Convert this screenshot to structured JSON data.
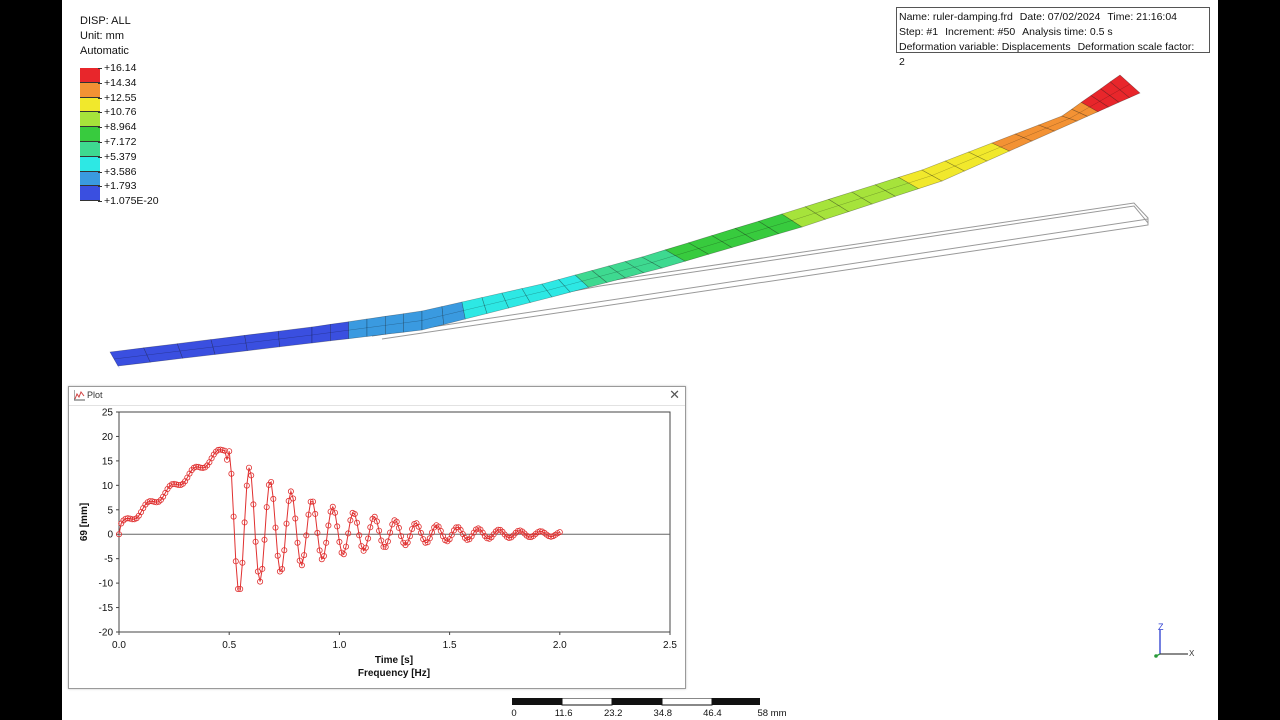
{
  "legend": {
    "variable": "DISP: ALL",
    "unit": "Unit: mm",
    "mode": "Automatic",
    "colors": [
      "#e8262b",
      "#f39234",
      "#f1e82c",
      "#a6e33b",
      "#38cb3e",
      "#3ed990",
      "#2de8e4",
      "#3a9ae0",
      "#3a4fe0"
    ],
    "labels": [
      "+16.14",
      "+14.34",
      "+12.55",
      "+10.76",
      "+8.964",
      "+7.172",
      "+5.379",
      "+3.586",
      "+1.793",
      "+1.075E-20"
    ]
  },
  "info": {
    "name": "Name: ruler-damping.frd",
    "date": "Date: 07/02/2024",
    "time": "Time: 21:16:04",
    "step": "Step: #1",
    "increment": "Increment: #50",
    "analysis_time": "Analysis time: 0.5 s",
    "def_var": "Deformation variable: Displacements",
    "scale": "Deformation scale factor: 2"
  },
  "plot_window": {
    "title": "Plot",
    "close": "✕"
  },
  "chart_data": {
    "type": "line",
    "xlabel": "Time [s]",
    "xlabel2": "Frequency [Hz]",
    "ylabel": "69 [mm]",
    "xlim": [
      0,
      2.5
    ],
    "ylim": [
      -20,
      25
    ],
    "xticks": [
      "0.0",
      "0.5",
      "1.0",
      "1.5",
      "2.0",
      "2.5"
    ],
    "yticks": [
      "25",
      "20",
      "15",
      "10",
      "5",
      "0",
      "-5",
      "-10",
      "-15",
      "-20"
    ],
    "series_color": "#e03030",
    "zero_line": true,
    "grid": false
  },
  "triad": {
    "z": "Z",
    "x": "X"
  },
  "scalebar": {
    "labels": [
      "0",
      "11.6",
      "23.2",
      "34.8",
      "46.4",
      "58 mm"
    ]
  }
}
